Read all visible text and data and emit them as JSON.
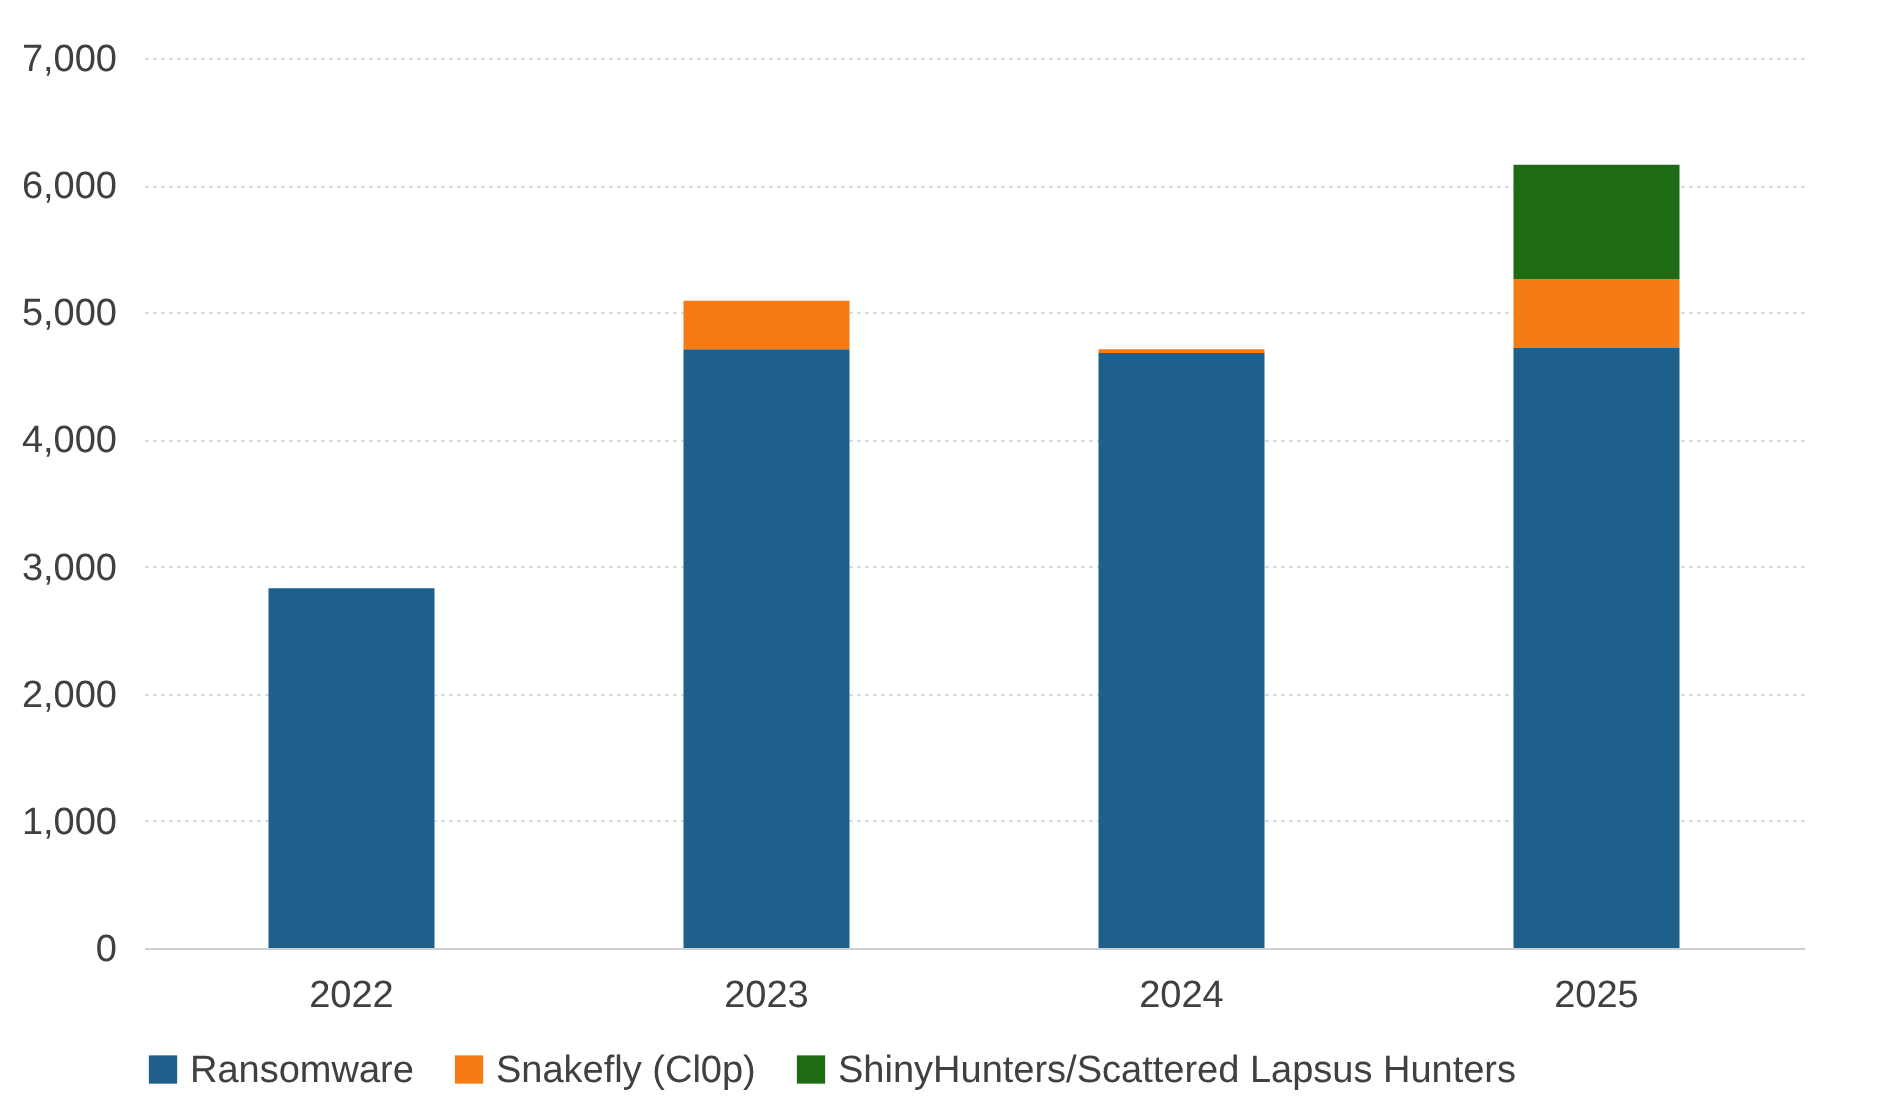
{
  "chart_data": {
    "type": "bar",
    "stacked": true,
    "categories": [
      "2022",
      "2023",
      "2024",
      "2025"
    ],
    "series": [
      {
        "name": "Ransomware",
        "color": "#1f5f8b",
        "values": [
          2830,
          4710,
          4680,
          4720
        ]
      },
      {
        "name": "Snakefly (Cl0p)",
        "color": "#f57c14",
        "values": [
          null,
          380,
          30,
          540
        ]
      },
      {
        "name": "ShinyHunters/Scattered Lapsus Hunters",
        "color": "#1d6b12",
        "values": [
          null,
          null,
          null,
          900
        ]
      }
    ],
    "ylim": [
      0,
      7000
    ],
    "yticks": [
      0,
      {
        "value": 1000,
        "label": "1,000"
      },
      {
        "value": 2000,
        "label": "2,000"
      },
      {
        "value": 3000,
        "label": "3,000"
      },
      {
        "value": 4000,
        "label": "4,000"
      },
      {
        "value": 5000,
        "label": "5,000"
      },
      {
        "value": 6000,
        "label": "6,000"
      },
      {
        "value": 7000,
        "label": "7,000"
      }
    ],
    "grid": "y",
    "legend": "bottom"
  }
}
